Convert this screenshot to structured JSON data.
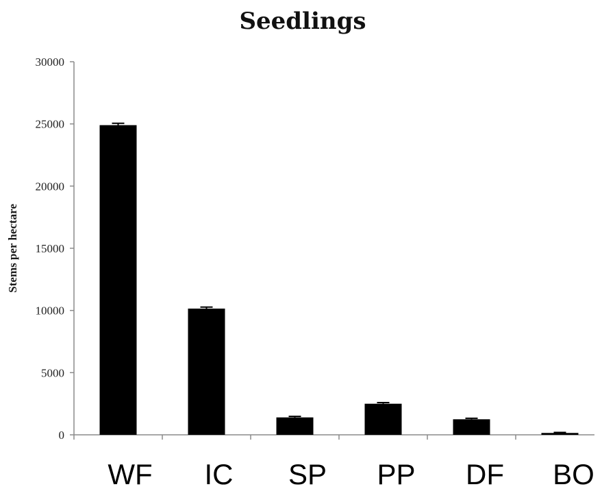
{
  "chart_data": {
    "type": "bar",
    "title": "Seedlings",
    "xlabel": "",
    "ylabel": "Stems per hectare",
    "categories": [
      "WF",
      "IC",
      "SP",
      "PP",
      "DF",
      "BO"
    ],
    "values": [
      24900,
      10150,
      1400,
      2500,
      1250,
      150
    ],
    "error": [
      150,
      120,
      80,
      90,
      80,
      40
    ],
    "ylim": [
      0,
      30000
    ],
    "yticks": [
      0,
      5000,
      10000,
      15000,
      20000,
      25000,
      30000
    ],
    "bar_color": "#000000",
    "grid": false,
    "legend": "none"
  }
}
